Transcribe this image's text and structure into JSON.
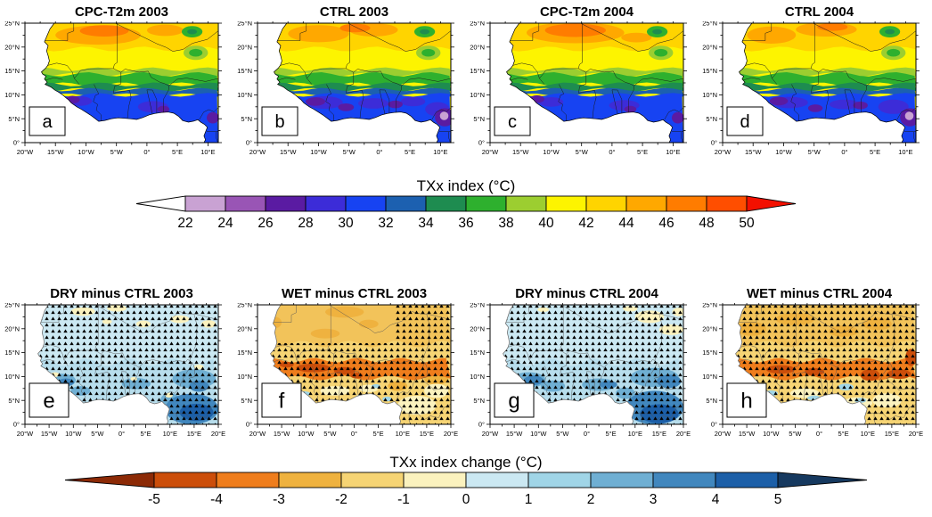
{
  "panels": [
    {
      "letter": "a",
      "title": "CPC-T2m 2003",
      "row": 0,
      "type": "txx"
    },
    {
      "letter": "b",
      "title": "CTRL 2003",
      "row": 0,
      "type": "txx"
    },
    {
      "letter": "c",
      "title": "CPC-T2m 2004",
      "row": 0,
      "type": "txx"
    },
    {
      "letter": "d",
      "title": "CTRL 2004",
      "row": 0,
      "type": "txx"
    },
    {
      "letter": "e",
      "title": "DRY minus CTRL 2003",
      "row": 1,
      "type": "anomaly-cool"
    },
    {
      "letter": "f",
      "title": "WET minus CTRL 2003",
      "row": 1,
      "type": "anomaly-warm"
    },
    {
      "letter": "g",
      "title": "DRY minus CTRL 2004",
      "row": 1,
      "type": "anomaly-cool"
    },
    {
      "letter": "h",
      "title": "WET minus CTRL 2004",
      "row": 1,
      "type": "anomaly-warm"
    }
  ],
  "axes": {
    "y_tick_labels": [
      "25°N",
      "20°N",
      "15°N",
      "10°N",
      "5°N",
      "0°"
    ],
    "x_tick_labels_top": [
      "20°W",
      "15°W",
      "10°W",
      "5°W",
      "0°",
      "5°E",
      "10°E"
    ],
    "x_tick_labels_bottom": [
      "20°W",
      "15°W",
      "10°W",
      "5°W",
      "0°",
      "5°E",
      "10°E",
      "15°E",
      "20°E"
    ]
  },
  "colorbars": [
    {
      "title": "TXx index (°C)",
      "tick_labels": [
        "22",
        "24",
        "26",
        "28",
        "30",
        "32",
        "34",
        "36",
        "38",
        "40",
        "42",
        "44",
        "46",
        "48",
        "50"
      ],
      "segment_colors": [
        "#c9a2d3",
        "#9955b5",
        "#5a1ba2",
        "#3c2cd8",
        "#1743f2",
        "#1c60b0",
        "#1e8c50",
        "#2eb02e",
        "#9cce30",
        "#fdf400",
        "#ffd400",
        "#ffa800",
        "#ff7c00",
        "#ff4e00"
      ],
      "arrow_left_color": "#ffffff",
      "arrow_right_color": "#f31000"
    },
    {
      "title": "TXx index change (°C)",
      "tick_labels": [
        "-5",
        "-4",
        "-3",
        "-2",
        "-1",
        "0",
        "1",
        "2",
        "3",
        "4",
        "5"
      ],
      "segment_colors": [
        "#cc4e0a",
        "#ef7d1c",
        "#efb23f",
        "#f6d474",
        "#fbf2be",
        "#cbe8f2",
        "#a0d5e7",
        "#6fafd3",
        "#4187be",
        "#1c5fa8"
      ],
      "arrow_left_color": "#8c2a06",
      "arrow_right_color": "#16395f"
    }
  ],
  "chart_data": [
    {
      "type": "heatmap",
      "title": "TXx index (°C)",
      "panels": [
        "a: CPC-T2m 2003",
        "b: CTRL 2003",
        "c: CPC-T2m 2004",
        "d: CTRL 2004"
      ],
      "region": {
        "lon_range": [
          "20°W",
          "10°E"
        ],
        "lat_range": [
          "0°",
          "25°N"
        ]
      },
      "scale_bins": [
        22,
        24,
        26,
        28,
        30,
        32,
        34,
        36,
        38,
        40,
        42,
        44,
        46,
        48,
        50
      ],
      "scale_colors": [
        "#c9a2d3",
        "#9955b5",
        "#5a1ba2",
        "#3c2cd8",
        "#1743f2",
        "#1c60b0",
        "#1e8c50",
        "#2eb02e",
        "#9cce30",
        "#fdf400",
        "#ffd400",
        "#ffa800",
        "#ff7c00",
        "#ff4e00"
      ],
      "pattern": "TXx increases northward: ~26-32°C (blue/purple) along the Guinea coast 0-10°N, 34-38°C (green) Sahel transition 10-15°N, 40-44°C (yellow/gold) 15-20°N, and 44-50°C (orange/red) hotspots in the Sahara 20-25°N; small cool green anomalies over the Air mountains near 8°E."
    },
    {
      "type": "heatmap",
      "title": "TXx index change (°C)",
      "panels": [
        "e: DRY minus CTRL 2003",
        "f: WET minus CTRL 2003",
        "g: DRY minus CTRL 2004",
        "h: WET minus CTRL 2004"
      ],
      "region": {
        "lon_range": [
          "20°W",
          "20°E"
        ],
        "lat_range": [
          "0°",
          "25°N"
        ]
      },
      "scale_bins": [
        -5,
        -4,
        -3,
        -2,
        -1,
        0,
        1,
        2,
        3,
        4,
        5
      ],
      "scale_colors": [
        "#cc4e0a",
        "#ef7d1c",
        "#efb23f",
        "#f6d474",
        "#fbf2be",
        "#cbe8f2",
        "#a0d5e7",
        "#6fafd3",
        "#4187be",
        "#1c5fa8"
      ],
      "pattern": "DRY minus CTRL (e,g): widespread +0.5 to +2°C warming (light blue) with +3 to +5°C (dark blue) over the Guinea highlands and southeast near 10-20°E, 0-8°N; scattered -1°C (pale yellow) spots. WET minus CTRL (f,h): widespread -1 to -3°C cooling (gold/amber) with -4 to -5°C (dark orange) band along 10-13°N; small +1°C (light blue) patches near the coast. Black stippling marks statistically significant changes."
    }
  ]
}
